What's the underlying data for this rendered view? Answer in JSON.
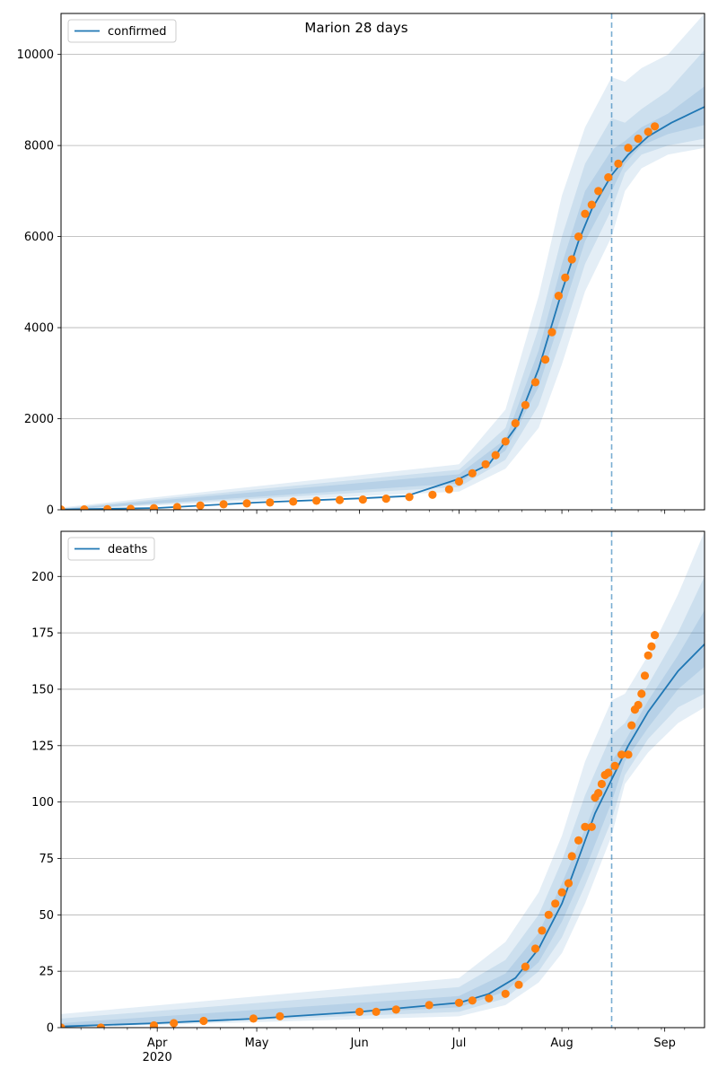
{
  "figure": {
    "title": "Marion 28 days"
  },
  "colors": {
    "model": "#1f77b4",
    "observed": "#ff7f0e",
    "band": "#1f77b4",
    "grid": "#b0b0b0",
    "vline": "#1f77b4"
  },
  "x_axis": {
    "start": "2020-03-03",
    "end": "2020-09-13",
    "month_ticks": [
      {
        "date": "2020-04-01",
        "label": "Apr",
        "sublabel": "2020"
      },
      {
        "date": "2020-05-01",
        "label": "May",
        "sublabel": ""
      },
      {
        "date": "2020-06-01",
        "label": "Jun",
        "sublabel": ""
      },
      {
        "date": "2020-07-01",
        "label": "Jul",
        "sublabel": ""
      },
      {
        "date": "2020-08-01",
        "label": "Aug",
        "sublabel": ""
      },
      {
        "date": "2020-09-01",
        "label": "Sep",
        "sublabel": ""
      }
    ]
  },
  "chart_data": [
    {
      "type": "line",
      "panel": "confirmed",
      "title": "Marion 28 days",
      "legend": "confirmed",
      "legend_position": "top-left",
      "grid": true,
      "ylim": [
        0,
        10900
      ],
      "yticks": [
        0,
        2000,
        4000,
        6000,
        8000,
        10000
      ],
      "forecast_start": "2020-08-16",
      "model_line": [
        [
          "2020-03-03",
          5
        ],
        [
          "2020-04-01",
          40
        ],
        [
          "2020-05-01",
          160
        ],
        [
          "2020-06-01",
          250
        ],
        [
          "2020-06-15",
          300
        ],
        [
          "2020-07-01",
          680
        ],
        [
          "2020-07-10",
          1000
        ],
        [
          "2020-07-18",
          1800
        ],
        [
          "2020-07-25",
          3100
        ],
        [
          "2020-08-01",
          4800
        ],
        [
          "2020-08-06",
          5900
        ],
        [
          "2020-08-10",
          6600
        ],
        [
          "2020-08-16",
          7350
        ],
        [
          "2020-08-21",
          7800
        ],
        [
          "2020-08-27",
          8200
        ],
        [
          "2020-09-03",
          8500
        ],
        [
          "2020-09-13",
          8850
        ]
      ],
      "bands": [
        {
          "lower": [
            [
              "2020-03-03",
              0
            ],
            [
              "2020-07-01",
              400
            ],
            [
              "2020-07-15",
              900
            ],
            [
              "2020-07-25",
              1800
            ],
            [
              "2020-08-01",
              3200
            ],
            [
              "2020-08-08",
              4800
            ],
            [
              "2020-08-16",
              6000
            ],
            [
              "2020-08-20",
              7000
            ],
            [
              "2020-08-25",
              7500
            ],
            [
              "2020-09-02",
              7800
            ],
            [
              "2020-09-13",
              7950
            ]
          ],
          "upper": [
            [
              "2020-03-03",
              50
            ],
            [
              "2020-07-01",
              1000
            ],
            [
              "2020-07-15",
              2200
            ],
            [
              "2020-07-25",
              4700
            ],
            [
              "2020-08-01",
              6900
            ],
            [
              "2020-08-08",
              8400
            ],
            [
              "2020-08-16",
              9500
            ],
            [
              "2020-08-20",
              9400
            ],
            [
              "2020-08-25",
              9700
            ],
            [
              "2020-09-02",
              10000
            ],
            [
              "2020-09-13",
              10900
            ]
          ]
        },
        {
          "lower": [
            [
              "2020-03-03",
              0
            ],
            [
              "2020-07-01",
              500
            ],
            [
              "2020-07-15",
              1100
            ],
            [
              "2020-07-25",
              2300
            ],
            [
              "2020-08-01",
              3800
            ],
            [
              "2020-08-08",
              5400
            ],
            [
              "2020-08-16",
              6600
            ],
            [
              "2020-08-20",
              7400
            ],
            [
              "2020-08-25",
              7800
            ],
            [
              "2020-09-02",
              8000
            ],
            [
              "2020-09-13",
              8150
            ]
          ],
          "upper": [
            [
              "2020-03-03",
              30
            ],
            [
              "2020-07-01",
              880
            ],
            [
              "2020-07-15",
              1800
            ],
            [
              "2020-07-25",
              4000
            ],
            [
              "2020-08-01",
              6000
            ],
            [
              "2020-08-08",
              7600
            ],
            [
              "2020-08-16",
              8600
            ],
            [
              "2020-08-20",
              8500
            ],
            [
              "2020-08-25",
              8800
            ],
            [
              "2020-09-02",
              9200
            ],
            [
              "2020-09-13",
              10100
            ]
          ]
        },
        {
          "lower": [
            [
              "2020-03-03",
              0
            ],
            [
              "2020-07-01",
              580
            ],
            [
              "2020-07-15",
              1300
            ],
            [
              "2020-07-25",
              2700
            ],
            [
              "2020-08-01",
              4300
            ],
            [
              "2020-08-08",
              5900
            ],
            [
              "2020-08-16",
              7000
            ],
            [
              "2020-08-20",
              7600
            ],
            [
              "2020-08-25",
              8000
            ],
            [
              "2020-09-02",
              8250
            ],
            [
              "2020-09-13",
              8450
            ]
          ],
          "upper": [
            [
              "2020-03-03",
              15
            ],
            [
              "2020-07-01",
              780
            ],
            [
              "2020-07-15",
              1550
            ],
            [
              "2020-07-25",
              3500
            ],
            [
              "2020-08-01",
              5400
            ],
            [
              "2020-08-08",
              7000
            ],
            [
              "2020-08-16",
              7900
            ],
            [
              "2020-08-20",
              8100
            ],
            [
              "2020-08-25",
              8400
            ],
            [
              "2020-09-02",
              8700
            ],
            [
              "2020-09-13",
              9300
            ]
          ]
        }
      ],
      "observed": [
        [
          "2020-03-03",
          5
        ],
        [
          "2020-03-10",
          8
        ],
        [
          "2020-03-17",
          12
        ],
        [
          "2020-03-24",
          20
        ],
        [
          "2020-03-31",
          35
        ],
        [
          "2020-04-07",
          60
        ],
        [
          "2020-04-14",
          95
        ],
        [
          "2020-04-21",
          120
        ],
        [
          "2020-04-28",
          140
        ],
        [
          "2020-05-05",
          160
        ],
        [
          "2020-05-12",
          180
        ],
        [
          "2020-05-19",
          200
        ],
        [
          "2020-05-26",
          215
        ],
        [
          "2020-06-02",
          225
        ],
        [
          "2020-06-09",
          245
        ],
        [
          "2020-06-16",
          280
        ],
        [
          "2020-06-23",
          330
        ],
        [
          "2020-06-28",
          450
        ],
        [
          "2020-07-01",
          620
        ],
        [
          "2020-07-05",
          800
        ],
        [
          "2020-07-09",
          1000
        ],
        [
          "2020-07-12",
          1200
        ],
        [
          "2020-07-15",
          1500
        ],
        [
          "2020-07-18",
          1900
        ],
        [
          "2020-07-21",
          2300
        ],
        [
          "2020-07-24",
          2800
        ],
        [
          "2020-07-27",
          3300
        ],
        [
          "2020-07-29",
          3900
        ],
        [
          "2020-07-31",
          4700
        ],
        [
          "2020-08-02",
          5100
        ],
        [
          "2020-08-04",
          5500
        ],
        [
          "2020-08-06",
          6000
        ],
        [
          "2020-08-08",
          6500
        ],
        [
          "2020-08-10",
          6700
        ],
        [
          "2020-08-12",
          7000
        ],
        [
          "2020-08-15",
          7300
        ],
        [
          "2020-08-18",
          7600
        ],
        [
          "2020-08-21",
          7950
        ],
        [
          "2020-08-24",
          8150
        ],
        [
          "2020-08-27",
          8300
        ],
        [
          "2020-08-29",
          8420
        ]
      ]
    },
    {
      "type": "line",
      "panel": "deaths",
      "legend": "deaths",
      "legend_position": "top-left",
      "grid": true,
      "ylim": [
        0,
        220
      ],
      "yticks": [
        0,
        25,
        50,
        75,
        100,
        125,
        150,
        175,
        200
      ],
      "forecast_start": "2020-08-16",
      "model_line": [
        [
          "2020-03-03",
          0.5
        ],
        [
          "2020-04-01",
          2
        ],
        [
          "2020-05-01",
          4
        ],
        [
          "2020-06-01",
          7
        ],
        [
          "2020-07-01",
          11
        ],
        [
          "2020-07-10",
          15
        ],
        [
          "2020-07-18",
          22
        ],
        [
          "2020-07-25",
          35
        ],
        [
          "2020-08-01",
          55
        ],
        [
          "2020-08-06",
          75
        ],
        [
          "2020-08-11",
          95
        ],
        [
          "2020-08-16",
          110
        ],
        [
          "2020-08-21",
          125
        ],
        [
          "2020-08-27",
          140
        ],
        [
          "2020-09-05",
          158
        ],
        [
          "2020-09-13",
          170
        ]
      ],
      "bands": [
        {
          "lower": [
            [
              "2020-03-03",
              0
            ],
            [
              "2020-07-01",
              5
            ],
            [
              "2020-07-15",
              10
            ],
            [
              "2020-07-25",
              20
            ],
            [
              "2020-08-01",
              33
            ],
            [
              "2020-08-08",
              55
            ],
            [
              "2020-08-16",
              85
            ],
            [
              "2020-08-20",
              108
            ],
            [
              "2020-08-27",
              122
            ],
            [
              "2020-09-05",
              135
            ],
            [
              "2020-09-13",
              142
            ]
          ],
          "upper": [
            [
              "2020-03-03",
              6
            ],
            [
              "2020-07-01",
              22
            ],
            [
              "2020-07-15",
              38
            ],
            [
              "2020-07-25",
              60
            ],
            [
              "2020-08-01",
              85
            ],
            [
              "2020-08-08",
              118
            ],
            [
              "2020-08-16",
              145
            ],
            [
              "2020-08-20",
              148
            ],
            [
              "2020-08-27",
              165
            ],
            [
              "2020-09-05",
              192
            ],
            [
              "2020-09-13",
              220
            ]
          ]
        },
        {
          "lower": [
            [
              "2020-03-03",
              0
            ],
            [
              "2020-07-01",
              7
            ],
            [
              "2020-07-15",
              13
            ],
            [
              "2020-07-25",
              25
            ],
            [
              "2020-08-01",
              40
            ],
            [
              "2020-08-08",
              63
            ],
            [
              "2020-08-16",
              92
            ],
            [
              "2020-08-20",
              112
            ],
            [
              "2020-08-27",
              128
            ],
            [
              "2020-09-05",
              142
            ],
            [
              "2020-09-13",
              148
            ]
          ],
          "upper": [
            [
              "2020-03-03",
              4
            ],
            [
              "2020-07-01",
              18
            ],
            [
              "2020-07-15",
              30
            ],
            [
              "2020-07-25",
              50
            ],
            [
              "2020-08-01",
              74
            ],
            [
              "2020-08-08",
              103
            ],
            [
              "2020-08-16",
              130
            ],
            [
              "2020-08-20",
              135
            ],
            [
              "2020-08-27",
              152
            ],
            [
              "2020-09-05",
              175
            ],
            [
              "2020-09-13",
              200
            ]
          ]
        },
        {
          "lower": [
            [
              "2020-03-03",
              0
            ],
            [
              "2020-07-01",
              9
            ],
            [
              "2020-07-15",
              16
            ],
            [
              "2020-07-25",
              29
            ],
            [
              "2020-08-01",
              47
            ],
            [
              "2020-08-08",
              70
            ],
            [
              "2020-08-16",
              100
            ],
            [
              "2020-08-20",
              118
            ],
            [
              "2020-08-27",
              133
            ],
            [
              "2020-09-05",
              150
            ],
            [
              "2020-09-13",
              160
            ]
          ],
          "upper": [
            [
              "2020-03-03",
              2
            ],
            [
              "2020-07-01",
              14
            ],
            [
              "2020-07-15",
              24
            ],
            [
              "2020-07-25",
              42
            ],
            [
              "2020-08-01",
              64
            ],
            [
              "2020-08-08",
              88
            ],
            [
              "2020-08-16",
              118
            ],
            [
              "2020-08-20",
              127
            ],
            [
              "2020-08-27",
              145
            ],
            [
              "2020-09-05",
              165
            ],
            [
              "2020-09-13",
              185
            ]
          ]
        }
      ],
      "observed": [
        [
          "2020-03-03",
          0
        ],
        [
          "2020-03-15",
          0
        ],
        [
          "2020-03-31",
          1
        ],
        [
          "2020-04-06",
          2
        ],
        [
          "2020-04-15",
          3
        ],
        [
          "2020-04-30",
          4
        ],
        [
          "2020-05-08",
          5
        ],
        [
          "2020-06-01",
          7
        ],
        [
          "2020-06-06",
          7
        ],
        [
          "2020-06-12",
          8
        ],
        [
          "2020-06-22",
          10
        ],
        [
          "2020-07-01",
          11
        ],
        [
          "2020-07-05",
          12
        ],
        [
          "2020-07-10",
          13
        ],
        [
          "2020-07-15",
          15
        ],
        [
          "2020-07-19",
          19
        ],
        [
          "2020-07-21",
          27
        ],
        [
          "2020-07-24",
          35
        ],
        [
          "2020-07-26",
          43
        ],
        [
          "2020-07-28",
          50
        ],
        [
          "2020-07-30",
          55
        ],
        [
          "2020-08-01",
          60
        ],
        [
          "2020-08-03",
          64
        ],
        [
          "2020-08-04",
          76
        ],
        [
          "2020-08-06",
          83
        ],
        [
          "2020-08-08",
          89
        ],
        [
          "2020-08-10",
          89
        ],
        [
          "2020-08-11",
          102
        ],
        [
          "2020-08-12",
          104
        ],
        [
          "2020-08-13",
          108
        ],
        [
          "2020-08-14",
          112
        ],
        [
          "2020-08-15",
          113
        ],
        [
          "2020-08-17",
          116
        ],
        [
          "2020-08-19",
          121
        ],
        [
          "2020-08-21",
          121
        ],
        [
          "2020-08-22",
          134
        ],
        [
          "2020-08-23",
          141
        ],
        [
          "2020-08-24",
          143
        ],
        [
          "2020-08-25",
          148
        ],
        [
          "2020-08-26",
          156
        ],
        [
          "2020-08-27",
          165
        ],
        [
          "2020-08-28",
          169
        ],
        [
          "2020-08-29",
          174
        ]
      ]
    }
  ]
}
